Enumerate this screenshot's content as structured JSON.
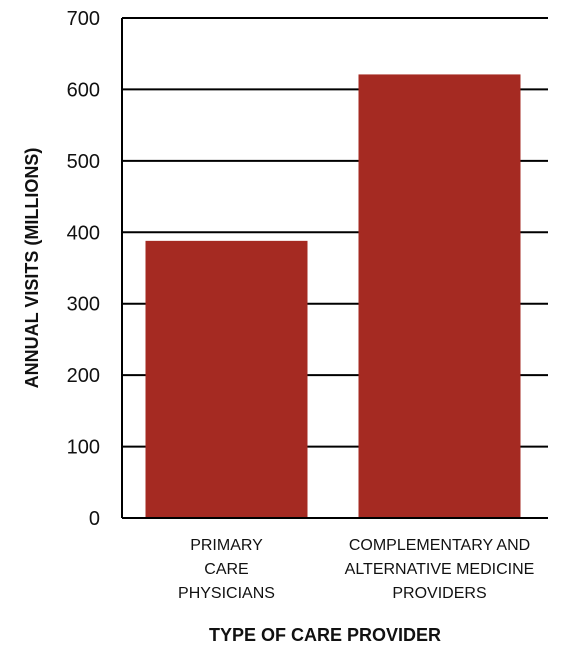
{
  "chart_data": {
    "type": "bar",
    "title": "",
    "xlabel": "TYPE OF CARE PROVIDER",
    "ylabel": "ANNUAL VISITS (MILLIONS)",
    "categories": [
      [
        "PRIMARY",
        "CARE",
        "PHYSICIANS"
      ],
      [
        "COMPLEMENTARY AND",
        "ALTERNATIVE MEDICINE",
        "PROVIDERS"
      ]
    ],
    "values": [
      388,
      621
    ],
    "ylim": [
      0,
      700
    ],
    "yticks": [
      "0",
      "100",
      "200",
      "300",
      "400",
      "500",
      "600",
      "700"
    ],
    "grid": true,
    "legend": "none",
    "bar_color": "#a52a22"
  }
}
